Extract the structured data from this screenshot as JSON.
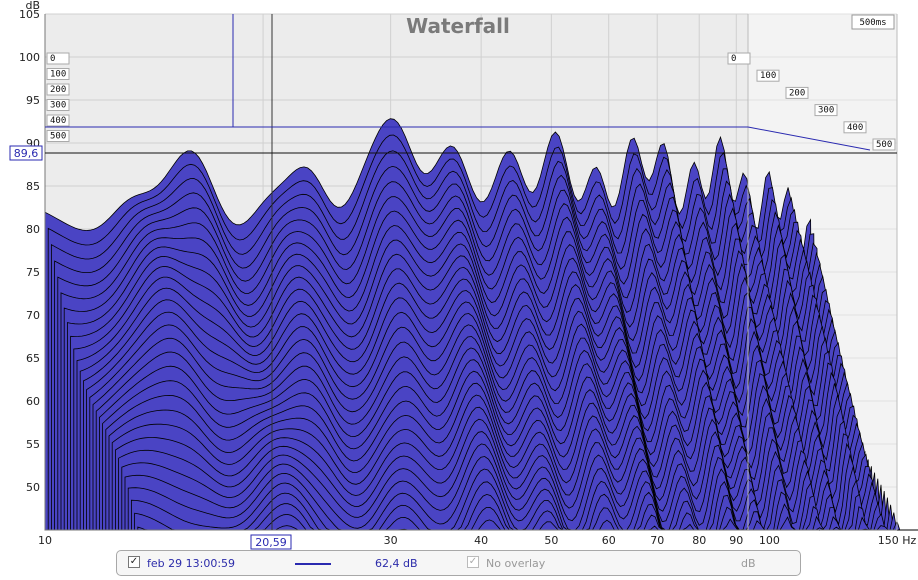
{
  "chart_data": {
    "type": "waterfall",
    "title": "Waterfall",
    "ylabel": "dB",
    "y_ticks": [
      "105",
      "100",
      "95",
      "90",
      "85",
      "80",
      "75",
      "70",
      "65",
      "60",
      "55",
      "50"
    ],
    "x_ticks": [
      "10",
      "30",
      "40",
      "50",
      "60",
      "70",
      "80",
      "90",
      "100"
    ],
    "x_unit_tick": "150 Hz",
    "time_ticks": [
      "0",
      "100",
      "200",
      "300",
      "400",
      "500"
    ],
    "time_max_label": "500ms",
    "xlim_hz": [
      10,
      150
    ],
    "ylim_db": [
      45,
      105
    ],
    "cursor": {
      "frequency_label": "20,59",
      "level_label": "89,6"
    },
    "fill_color": "#4a44c4",
    "line_color": "#000000",
    "grid_color": "#d0d0d0",
    "series_description": "Decay slices from 0 ms to 500 ms"
  },
  "legend": {
    "measurement_label": "feb 29 13:00:59",
    "measurement_checked": true,
    "level": "62,4 dB",
    "overlay_label": "No overlay",
    "overlay_checked": true,
    "overlay_unit": "dB",
    "line_color": "#2a2ab0"
  }
}
